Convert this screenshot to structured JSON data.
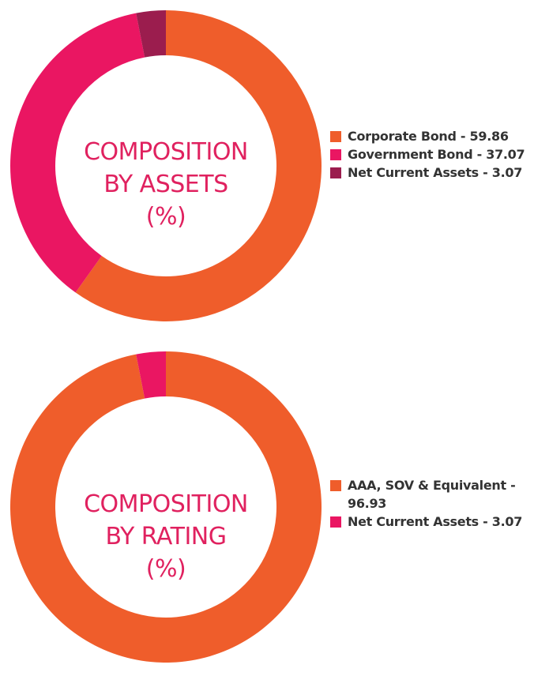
{
  "chart_data": [
    {
      "type": "pie",
      "title": [
        "COMPOSITION",
        "BY ASSETS",
        "(%)"
      ],
      "categories": [
        "Corporate Bond",
        "Government Bond",
        "Net Current Assets"
      ],
      "values": [
        59.86,
        37.07,
        3.07
      ],
      "colors": [
        "#ef5d2b",
        "#ea1662",
        "#9b1d4e"
      ],
      "legend": [
        "Corporate Bond - 59.86",
        "Government Bond - 37.07",
        "Net Current Assets - 3.07"
      ],
      "legend_position": "right"
    },
    {
      "type": "pie",
      "title": [
        "COMPOSITION",
        "BY RATING",
        "(%)"
      ],
      "categories": [
        "AAA, SOV & Equivalent",
        "Net Current Assets"
      ],
      "values": [
        96.93,
        3.07
      ],
      "colors": [
        "#ef5d2b",
        "#ea1662"
      ],
      "legend": [
        "AAA, SOV & Equivalent - 96.93",
        "Net Current Assets - 3.07"
      ],
      "legend_position": "right"
    }
  ]
}
